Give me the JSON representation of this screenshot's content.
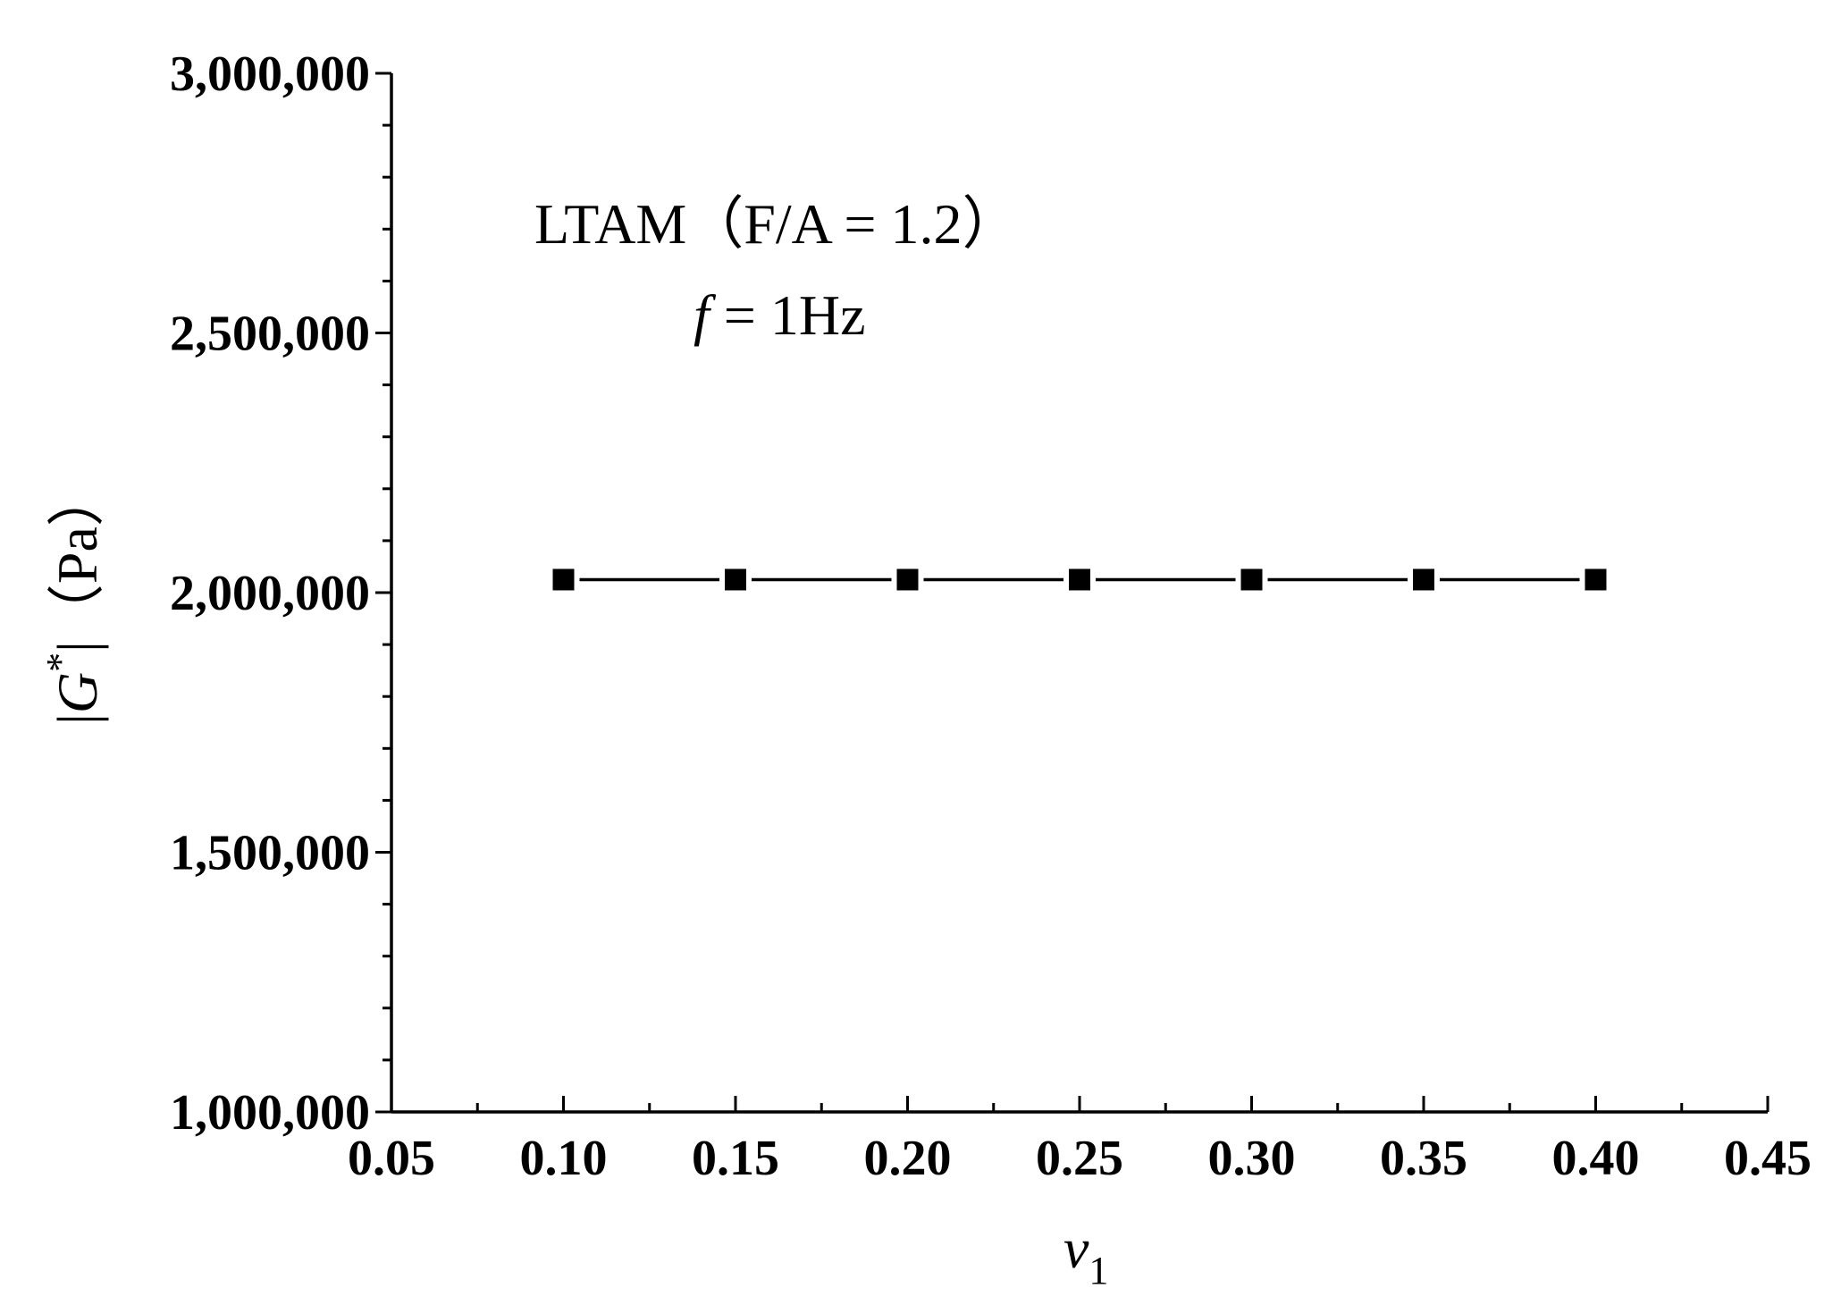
{
  "chart_data": {
    "type": "line",
    "x": [
      0.1,
      0.15,
      0.2,
      0.25,
      0.3,
      0.35,
      0.4
    ],
    "series": [
      {
        "values": [
          2025000,
          2025000,
          2025000,
          2025000,
          2025000,
          2025000,
          2025000
        ]
      }
    ],
    "xlim": [
      0.05,
      0.45
    ],
    "ylim": [
      1000000,
      3000000
    ],
    "x_ticks": [
      0.05,
      0.1,
      0.15,
      0.2,
      0.25,
      0.3,
      0.35,
      0.4,
      0.45
    ],
    "x_tick_labels": [
      "0.05",
      "0.10",
      "0.15",
      "0.20",
      "0.25",
      "0.30",
      "0.35",
      "0.40",
      "0.45"
    ],
    "y_ticks": [
      1000000,
      1500000,
      2000000,
      2500000,
      3000000
    ],
    "y_tick_labels": [
      "1,000,000",
      "1,500,000",
      "2,000,000",
      "2,500,000",
      "3,000,000"
    ],
    "xlabel": {
      "main": "v",
      "sub": "1"
    },
    "ylabel": {
      "bar_left": "|",
      "main": "G",
      "sup": "*",
      "bar_right": "|",
      "unit": "（Pa）"
    },
    "annotations": [
      {
        "text": "LTAM（F/A = 1.2）"
      },
      {
        "italic": "f",
        "text": " = 1Hz"
      }
    ],
    "marker": "square",
    "line_color": "#000000",
    "marker_color": "#000000",
    "grid": false,
    "legend": "none"
  }
}
